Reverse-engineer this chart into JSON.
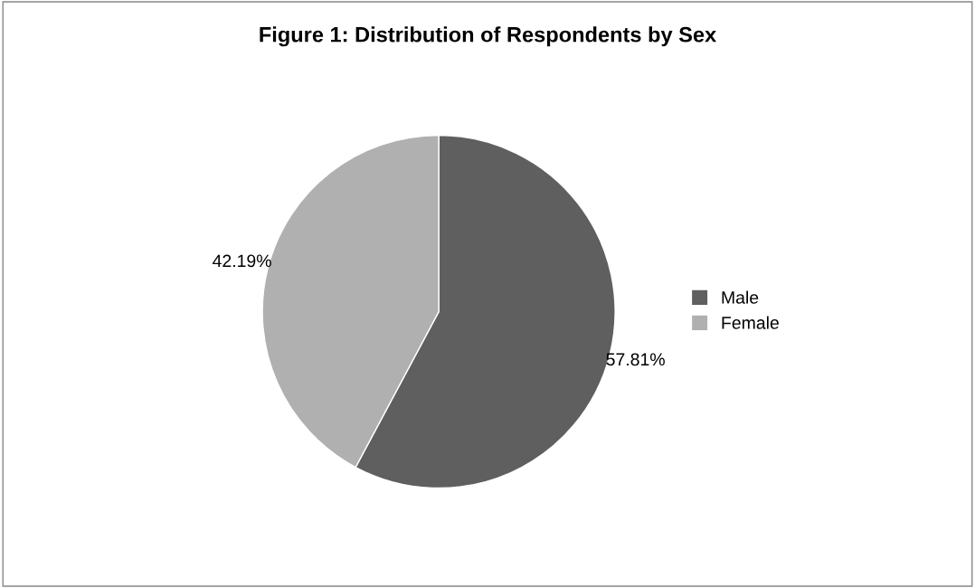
{
  "chart_data": {
    "type": "pie",
    "title": "Figure 1: Distribution of Respondents by Sex",
    "categories": [
      "Male",
      "Female"
    ],
    "values": [
      57.81,
      42.19
    ],
    "colors": [
      "#5f5f5f",
      "#b0b0b0"
    ],
    "value_labels": [
      "57.81%",
      "42.19%"
    ],
    "legend": "right"
  }
}
